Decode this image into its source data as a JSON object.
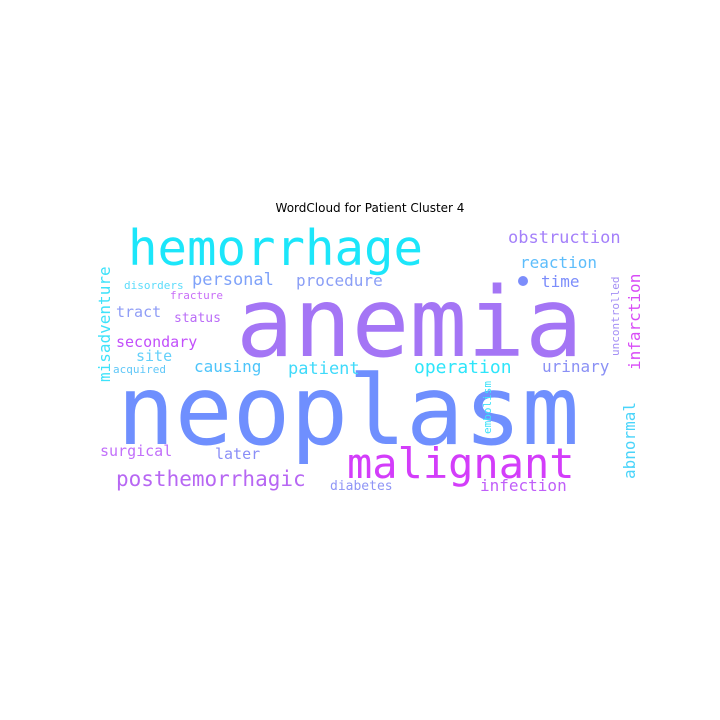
{
  "title": "WordCloud for Patient Cluster 4",
  "words": [
    {
      "text": "anemia",
      "color": "#a475f5"
    },
    {
      "text": "neoplasm",
      "color": "#6f8ffe"
    },
    {
      "text": "hemorrhage",
      "color": "#1ce6fa"
    },
    {
      "text": "malignant",
      "color": "#d33dfa"
    },
    {
      "text": "posthemorrhagic",
      "color": "#b767f3"
    },
    {
      "text": "obstruction",
      "color": "#a480fa"
    },
    {
      "text": "personal",
      "color": "#7fa2f9"
    },
    {
      "text": "procedure",
      "color": "#8a9ef6"
    },
    {
      "text": "reaction",
      "color": "#5dbdfb"
    },
    {
      "text": "time",
      "color": "#7c8dfb"
    },
    {
      "text": "tract",
      "color": "#8f9df6"
    },
    {
      "text": "status",
      "color": "#ba6cf7"
    },
    {
      "text": "secondary",
      "color": "#c24ffb"
    },
    {
      "text": "site",
      "color": "#64d0fa"
    },
    {
      "text": "causing",
      "color": "#4dc4fa"
    },
    {
      "text": "patient",
      "color": "#3fdafa"
    },
    {
      "text": "operation",
      "color": "#2ee5fa"
    },
    {
      "text": "urinary",
      "color": "#8a90f5"
    },
    {
      "text": "surgical",
      "color": "#c16ffa"
    },
    {
      "text": "later",
      "color": "#8a8ef7"
    },
    {
      "text": "diabetes",
      "color": "#8f95f6"
    },
    {
      "text": "infection",
      "color": "#c05ff9"
    },
    {
      "text": "abnormal",
      "color": "#4ad4fa"
    },
    {
      "text": "infarction",
      "color": "#d84cf7"
    },
    {
      "text": "uncontrolled",
      "color": "#a48ff5"
    },
    {
      "text": "embolism",
      "color": "#3ee2fa"
    },
    {
      "text": "misadventure",
      "color": "#3ee2fa"
    },
    {
      "text": "disorders",
      "color": "#5cdcfb"
    },
    {
      "text": "fracture",
      "color": "#c86ef8"
    },
    {
      "text": "acquired",
      "color": "#5fc7f8"
    }
  ]
}
